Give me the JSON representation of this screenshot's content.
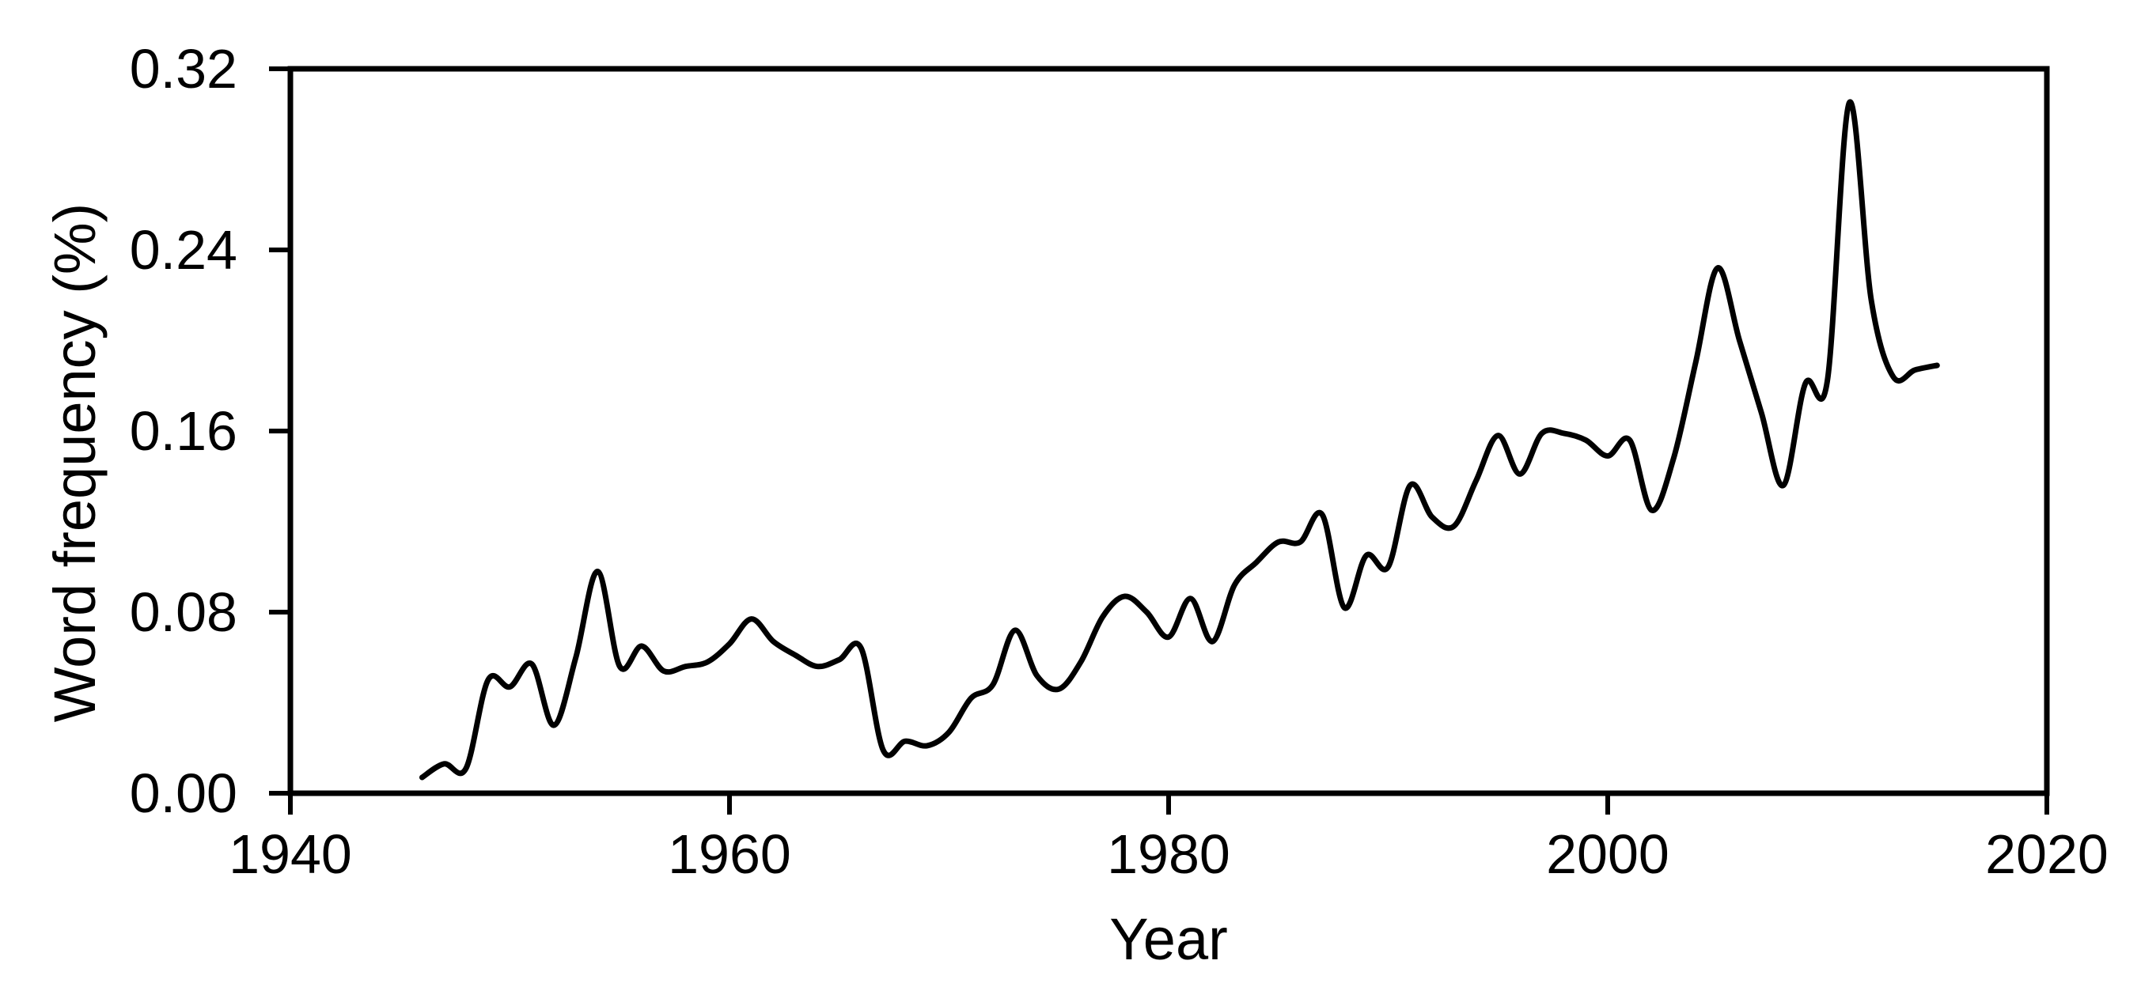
{
  "figure": {
    "background_color": "#ffffff",
    "line_color": "#000000",
    "axis_color": "#000000"
  },
  "chart_data": {
    "type": "line",
    "title": "",
    "xlabel": "Year",
    "ylabel": "Word frequency (%)",
    "xlim": [
      1940,
      2020
    ],
    "ylim": [
      0.0,
      0.32
    ],
    "grid": false,
    "legend": "none",
    "frame": "full-box",
    "x_ticks": [
      1940,
      1960,
      1980,
      2000,
      2020
    ],
    "x_tick_labels": [
      "1940",
      "1960",
      "1980",
      "2000",
      "2020"
    ],
    "y_ticks": [
      0.0,
      0.08,
      0.16,
      0.24,
      0.32
    ],
    "y_tick_labels": [
      "0.00",
      "0.08",
      "0.16",
      "0.24",
      "0.32"
    ],
    "series": [
      {
        "name": "word-frequency",
        "color": "#000000",
        "x": [
          1946,
          1947,
          1948,
          1949,
          1950,
          1951,
          1952,
          1953,
          1954,
          1955,
          1956,
          1957,
          1958,
          1959,
          1960,
          1961,
          1962,
          1963,
          1964,
          1965,
          1966,
          1967,
          1968,
          1969,
          1970,
          1971,
          1972,
          1973,
          1974,
          1975,
          1976,
          1977,
          1978,
          1979,
          1980,
          1981,
          1982,
          1983,
          1984,
          1985,
          1986,
          1987,
          1988,
          1989,
          1990,
          1991,
          1992,
          1993,
          1994,
          1995,
          1996,
          1997,
          1998,
          1999,
          2000,
          2001,
          2002,
          2003,
          2004,
          2005,
          2006,
          2007,
          2008,
          2009,
          2010,
          2011,
          2012,
          2013,
          2014,
          2015
        ],
        "values": [
          0.007,
          0.013,
          0.011,
          0.05,
          0.047,
          0.057,
          0.03,
          0.06,
          0.098,
          0.056,
          0.065,
          0.054,
          0.056,
          0.058,
          0.066,
          0.077,
          0.067,
          0.061,
          0.056,
          0.059,
          0.064,
          0.019,
          0.023,
          0.021,
          0.027,
          0.042,
          0.048,
          0.072,
          0.052,
          0.046,
          0.058,
          0.078,
          0.087,
          0.08,
          0.069,
          0.086,
          0.067,
          0.092,
          0.102,
          0.111,
          0.111,
          0.123,
          0.082,
          0.105,
          0.1,
          0.136,
          0.122,
          0.118,
          0.138,
          0.158,
          0.141,
          0.159,
          0.159,
          0.156,
          0.149,
          0.156,
          0.125,
          0.148,
          0.19,
          0.232,
          0.2,
          0.168,
          0.136,
          0.181,
          0.182,
          0.305,
          0.218,
          0.184,
          0.187,
          0.189
        ]
      }
    ]
  }
}
